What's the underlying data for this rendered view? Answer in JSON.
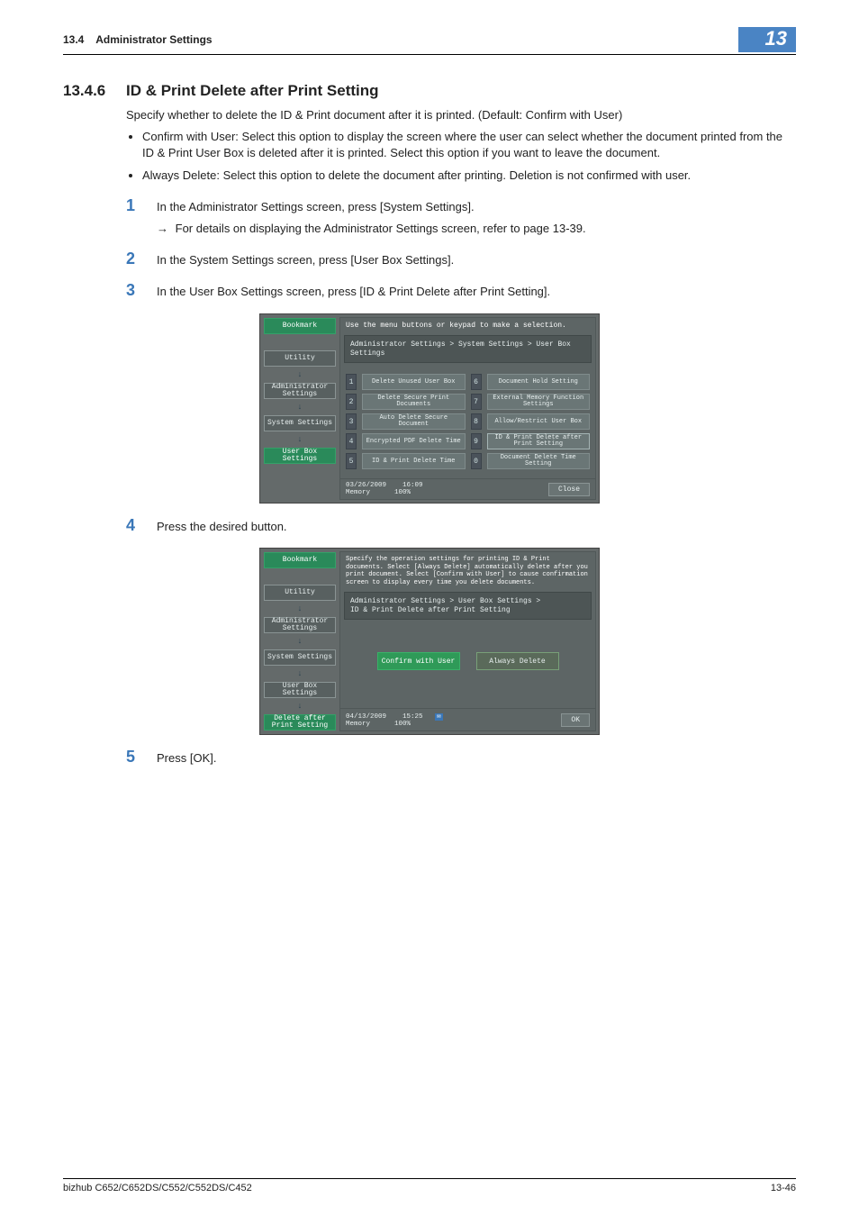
{
  "header": {
    "section_number": "13.4",
    "section_title": "Administrator Settings",
    "chapter": "13"
  },
  "title": {
    "number": "13.4.6",
    "text": "ID & Print Delete after Print Setting"
  },
  "intro": "Specify whether to delete the ID & Print document after it is printed. (Default: Confirm with User)",
  "bullets": [
    "Confirm with User: Select this option to display the screen where the user can select whether the document printed from the ID & Print User Box is deleted after it is printed. Select this option if you want to leave the document.",
    "Always Delete: Select this option to delete the document after printing. Deletion is not confirmed with user."
  ],
  "steps": [
    {
      "num": "1",
      "text": "In the Administrator Settings screen, press [System Settings].",
      "sub": "For details on displaying the Administrator Settings screen, refer to page 13-39."
    },
    {
      "num": "2",
      "text": "In the System Settings screen, press [User Box Settings]."
    },
    {
      "num": "3",
      "text": "In the User Box Settings screen, press [ID & Print Delete after Print Setting]."
    },
    {
      "num": "4",
      "text": "Press the desired button."
    },
    {
      "num": "5",
      "text": "Press [OK]."
    }
  ],
  "panel1": {
    "top": "Use the menu buttons or keypad to make a selection.",
    "crumb": "Administrator Settings > System Settings > User Box Settings",
    "side": [
      {
        "label": "Bookmark",
        "active": true
      },
      {
        "label": "Utility"
      },
      {
        "label": "Administrator\nSettings"
      },
      {
        "label": "System Settings"
      },
      {
        "label": "User Box\nSettings",
        "active": true
      }
    ],
    "items": [
      {
        "n": "1",
        "label": "Delete Unused User Box"
      },
      {
        "n": "2",
        "label": "Delete Secure\nPrint Documents"
      },
      {
        "n": "3",
        "label": "Auto Delete Secure Document"
      },
      {
        "n": "4",
        "label": "Encrypted PDF Delete Time"
      },
      {
        "n": "5",
        "label": "ID & Print Delete Time"
      },
      {
        "n": "6",
        "label": "Document Hold Setting"
      },
      {
        "n": "7",
        "label": "External Memory\nFunction Settings"
      },
      {
        "n": "8",
        "label": "Allow/Restrict User Box"
      },
      {
        "n": "9",
        "label": "ID & Print\nDelete after Print Setting"
      },
      {
        "n": "0",
        "label": "Document Delete Time\nSetting"
      }
    ],
    "foot_date": "03/26/2009",
    "foot_time": "16:09",
    "foot_mem": "Memory",
    "foot_pct": "100%",
    "close": "Close"
  },
  "panel2": {
    "top": "Specify the operation settings for printing ID & Print documents. Select [Always Delete] automatically delete after you print document. Select [Confirm with User] to cause confirmation screen to display every time you delete documents.",
    "crumb": "Administrator Settings > User Box Settings >\nID & Print Delete after Print Setting",
    "side": [
      {
        "label": "Bookmark",
        "active": true
      },
      {
        "label": "Utility"
      },
      {
        "label": "Administrator\nSettings"
      },
      {
        "label": "System Settings"
      },
      {
        "label": "User Box\nSettings"
      },
      {
        "label": "Delete after\nPrint Setting",
        "active": true
      }
    ],
    "options": [
      {
        "label": "Confirm with User",
        "selected": true
      },
      {
        "label": "Always Delete",
        "selected": false
      }
    ],
    "foot_date": "04/13/2009",
    "foot_time": "15:25",
    "foot_mem": "Memory",
    "foot_pct": "100%",
    "ok": "OK"
  },
  "footer": {
    "model": "bizhub C652/C652DS/C552/C552DS/C452",
    "page": "13-46"
  },
  "styling": {
    "accent_color": "#3a77b8",
    "chapter_badge_bg": "#4a84c4",
    "panel_bg": "#646a6a",
    "panel_text": "#e8efef",
    "active_green": "#2f9a58"
  }
}
